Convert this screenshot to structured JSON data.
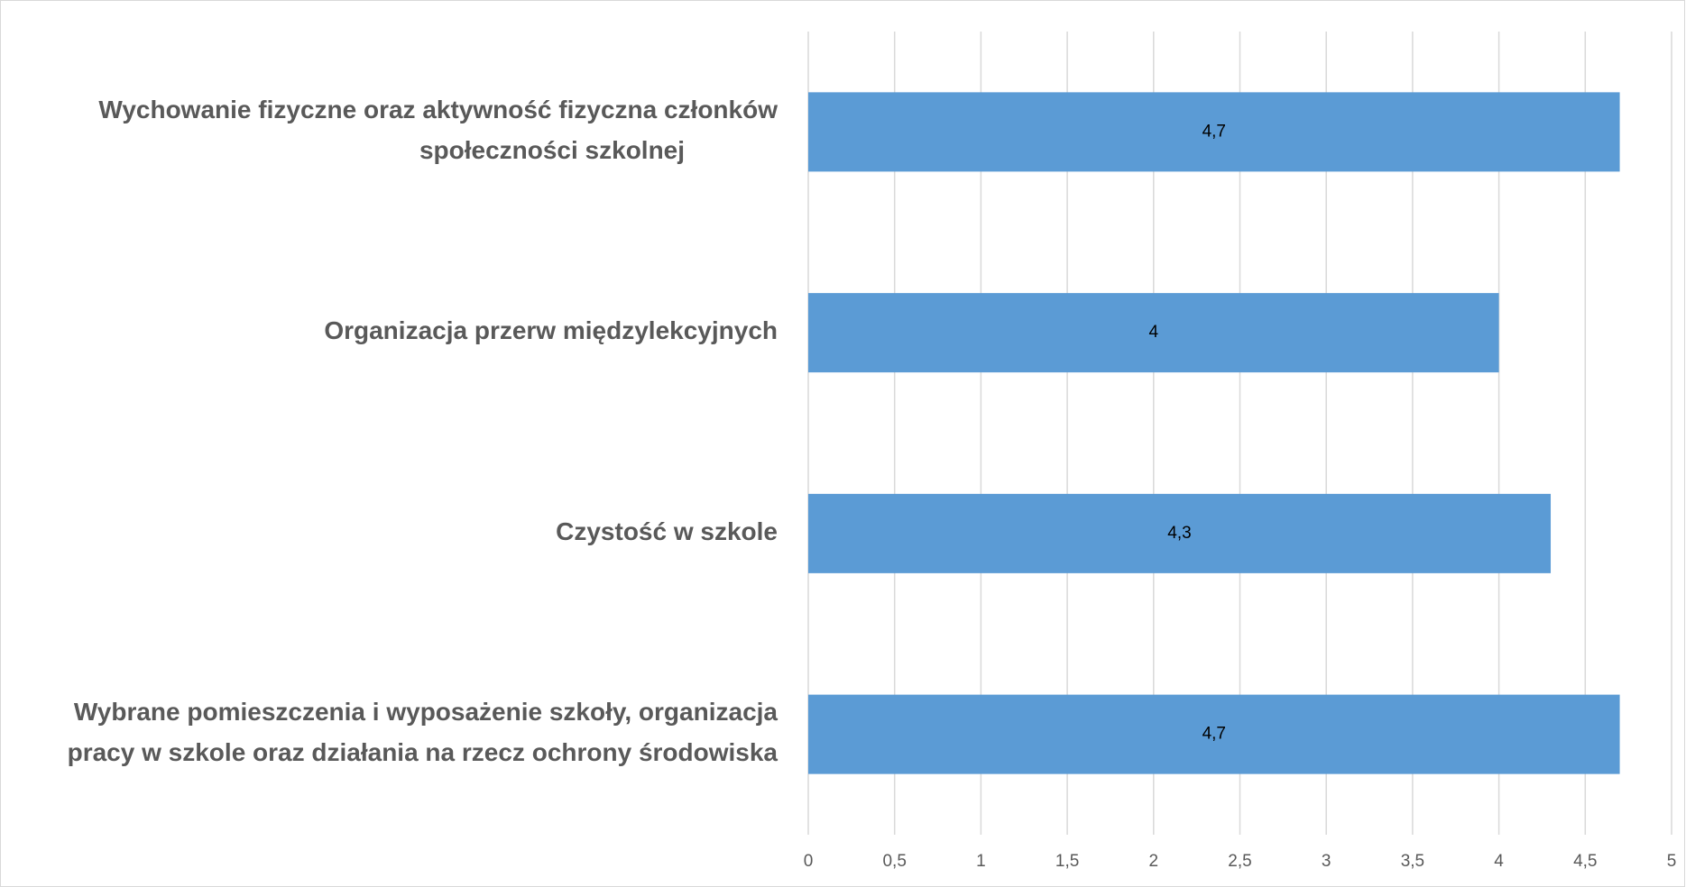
{
  "chart_data": {
    "type": "bar",
    "orientation": "horizontal",
    "categories": [
      "Wychowanie fizyczne oraz aktywność fizyczna członków\nspołeczności szkolnej",
      "Organizacja przerw międzylekcyjnych",
      "Czystość w szkole",
      "Wybrane pomieszczenia i wyposażenie szkoły, organizacja\npracy w szkole oraz działania na rzecz ochrony środowiska"
    ],
    "values": [
      4.7,
      4,
      4.3,
      4.7
    ],
    "value_labels": [
      "4,7",
      "4",
      "4,3",
      "4,7"
    ],
    "color": "#5b9bd5",
    "xlim": [
      0,
      5
    ],
    "xticks": [
      0,
      {
        "value": 0.5,
        "label": "0,5"
      },
      1,
      {
        "value": 1.5,
        "label": "1,5"
      },
      2,
      {
        "value": 2.5,
        "label": "2,5"
      },
      3,
      {
        "value": 3.5,
        "label": "3,5"
      },
      4,
      {
        "value": 4.5,
        "label": "4,5"
      },
      5
    ],
    "grid": true
  }
}
